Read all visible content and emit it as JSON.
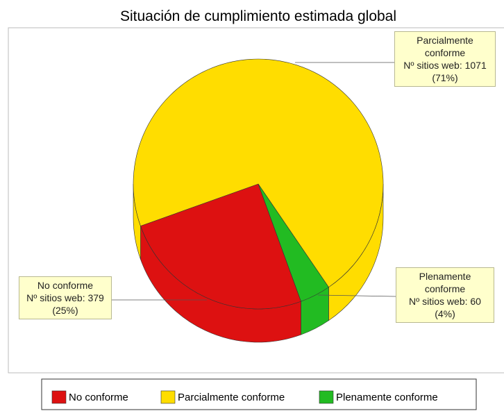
{
  "chart_data": {
    "type": "pie",
    "title": "Situación de cumplimiento estimada global",
    "categories": [
      "No conforme",
      "Parcialmente conforme",
      "Plenamente conforme"
    ],
    "values": [
      379,
      1071,
      60
    ],
    "value_labels": [
      "Nº sitios web: 379",
      "Nº sitios web: 1071",
      "Nº sitios web: 60"
    ],
    "percent_labels": [
      "(25%)",
      "(71%)",
      "(4%)"
    ],
    "colors": [
      "#dd1111",
      "#ffdd00",
      "#22bb22"
    ],
    "legend": "bottom"
  }
}
